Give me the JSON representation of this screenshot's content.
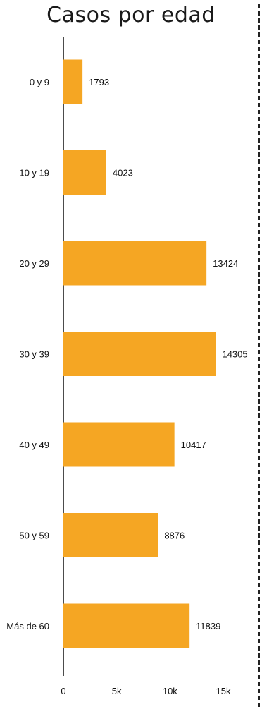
{
  "chart_data": {
    "type": "bar",
    "orientation": "horizontal",
    "title": "Casos por edad",
    "categories": [
      "0 y 9",
      "10 y 19",
      "20 y 29",
      "30 y 39",
      "40 y 49",
      "50 y 59",
      "Más de 60"
    ],
    "values": [
      1793,
      4023,
      13424,
      14305,
      10417,
      8876,
      11839
    ],
    "xlim": [
      0,
      15000
    ],
    "x_ticks": [
      0,
      5000,
      10000,
      15000
    ],
    "x_tick_labels": [
      "0",
      "5k",
      "10k",
      "15k"
    ],
    "grid": false,
    "bar_color": "#F5A623",
    "value_labels": true
  }
}
